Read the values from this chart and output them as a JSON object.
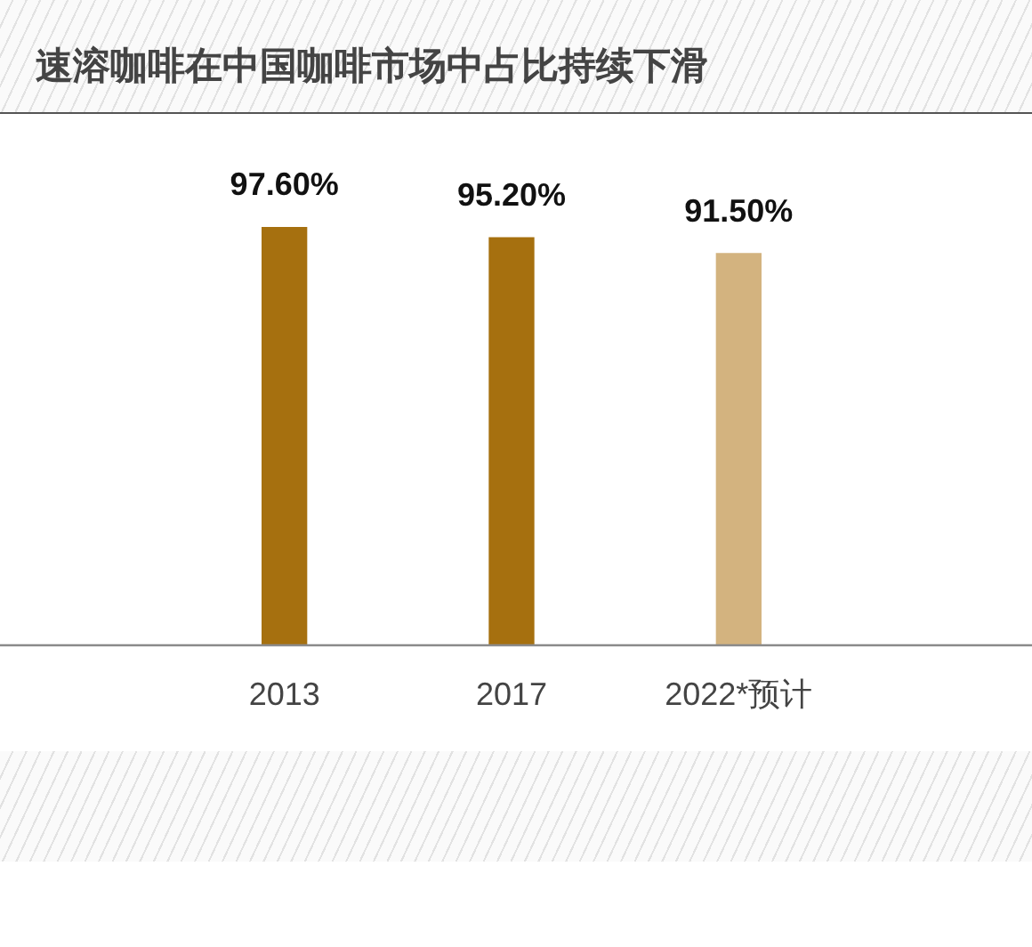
{
  "chart_data": {
    "type": "bar",
    "title": "速溶咖啡在中国咖啡市场中占比持续下滑",
    "categories": [
      "2013",
      "2017",
      "2022*预计"
    ],
    "values": [
      97.6,
      95.2,
      91.5
    ],
    "colors": [
      "#a6700f",
      "#a6700f",
      "#d3b37f"
    ],
    "value_labels": [
      "97.60%",
      "95.20%",
      "91.50%"
    ],
    "tick_labels": "x"
  }
}
